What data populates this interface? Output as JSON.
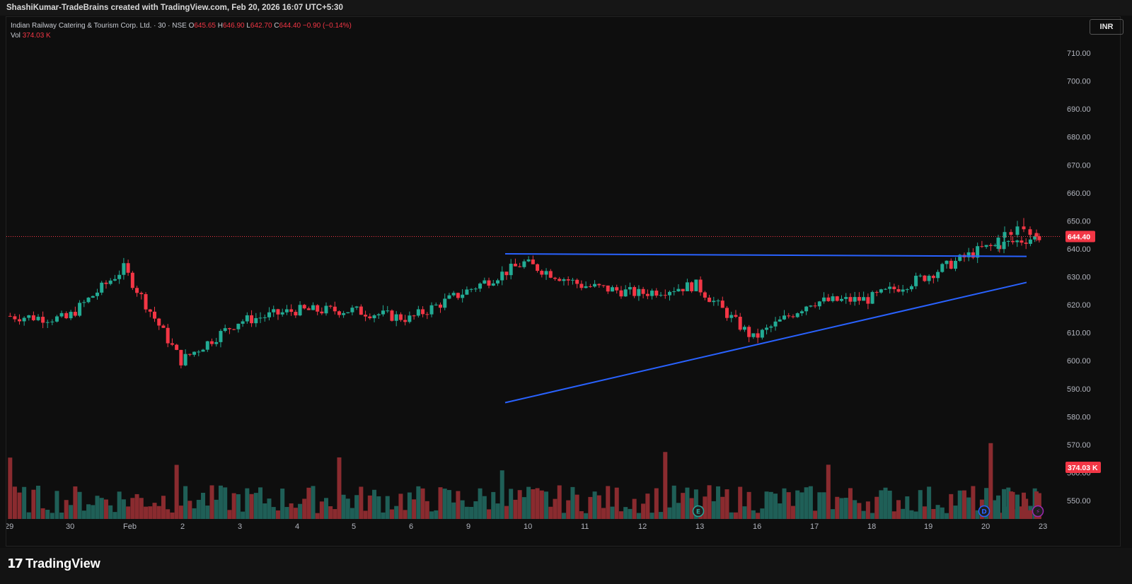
{
  "header": {
    "attribution": "ShashiKumar-TradeBrains created with TradingView.com, Feb 20, 2026 16:07 UTC+5:30"
  },
  "legend": {
    "symbol": "Indian Railway Catering & Tourism Corp. Ltd. · 30 · NSE",
    "o_label": "O",
    "o_value": "645.65",
    "h_label": "H",
    "h_value": "646.90",
    "l_label": "L",
    "l_value": "642.70",
    "c_label": "C",
    "c_value": "644.40",
    "change": "−0.90 (−0.14%)",
    "vol_label": "Vol",
    "vol_value": "374.03 K"
  },
  "currency": "INR",
  "price_axis": {
    "ticks": [
      "710.00",
      "700.00",
      "690.00",
      "680.00",
      "670.00",
      "660.00",
      "650.00",
      "640.00",
      "630.00",
      "620.00",
      "610.00",
      "600.00",
      "590.00",
      "580.00",
      "570.00",
      "560.00",
      "550.00"
    ]
  },
  "time_axis": {
    "labels": [
      "29",
      "30",
      "Feb",
      "2",
      "3",
      "4",
      "5",
      "6",
      "9",
      "10",
      "11",
      "12",
      "13",
      "16",
      "17",
      "18",
      "19",
      "20",
      "23"
    ]
  },
  "last_price_label": "644.40",
  "volume_label": "374.03 K",
  "event_markers": [
    "E",
    "D",
    "⚡"
  ],
  "footer": {
    "brand": "TradingView",
    "mark": "17"
  },
  "colors": {
    "up": "#22ab94",
    "down": "#f23645",
    "trendline": "#2962ff",
    "vol_up": "#1f5f57",
    "vol_down": "#8a2b2f"
  },
  "chart_data": {
    "type": "candlestick",
    "symbol": "IRCTC",
    "exchange": "NSE",
    "interval": "30",
    "y_range": [
      541,
      718
    ],
    "last_price": 644.4,
    "day_anchors": [
      {
        "label": "29",
        "close": 616
      },
      {
        "label": "30",
        "close": 615
      },
      {
        "label": "Feb",
        "close": 633
      },
      {
        "label": "2",
        "close": 600
      },
      {
        "label": "3",
        "close": 614
      },
      {
        "label": "4",
        "close": 618
      },
      {
        "label": "5",
        "close": 618
      },
      {
        "label": "6",
        "close": 615
      },
      {
        "label": "9",
        "close": 625
      },
      {
        "label": "10",
        "close": 635
      },
      {
        "label": "11",
        "close": 627
      },
      {
        "label": "12",
        "close": 624
      },
      {
        "label": "13",
        "close": 627
      },
      {
        "label": "16",
        "close": 608
      },
      {
        "label": "17",
        "close": 621
      },
      {
        "label": "18",
        "close": 622
      },
      {
        "label": "19",
        "close": 630
      },
      {
        "label": "20",
        "close": 640
      },
      {
        "label": "23",
        "close": 644.4
      }
    ],
    "trendlines": [
      {
        "name": "resistance",
        "from": {
          "x": "10",
          "price": 638.2
        },
        "to": {
          "x": "20",
          "price": 637.3
        }
      },
      {
        "name": "support",
        "from": {
          "x": "10",
          "price": 585
        },
        "to": {
          "x": "20",
          "price": 628
        }
      }
    ]
  }
}
